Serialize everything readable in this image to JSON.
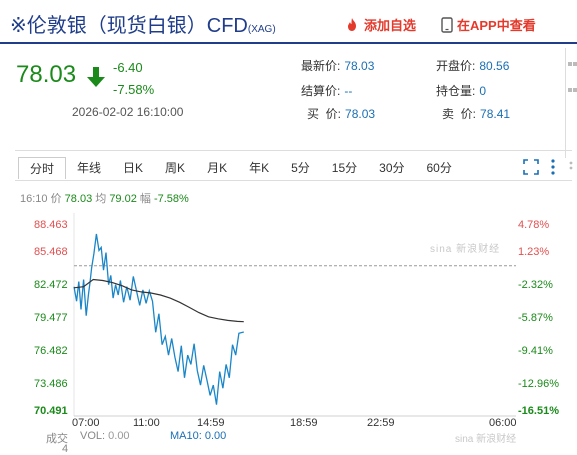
{
  "header": {
    "title": "※伦敦银（现货白银）CFD",
    "title_code": "(XAG)",
    "fav_label": "添加自选",
    "app_label": "在APP中查看"
  },
  "quote": {
    "price": "78.03",
    "change": "-6.40",
    "change_pct": "-7.58%",
    "datetime": "2026-02-02 16:10:00",
    "fields": [
      {
        "label": "最新价:",
        "value": "78.03"
      },
      {
        "label": "开盘价:",
        "value": "80.56"
      },
      {
        "label": "结算价:",
        "value": "--"
      },
      {
        "label": "持仓量:",
        "value": "0"
      },
      {
        "label": "买  价:",
        "value": "78.03"
      },
      {
        "label": "卖  价:",
        "value": "78.41"
      }
    ]
  },
  "chart_tabs": [
    "分时",
    "年线",
    "日K",
    "周K",
    "月K",
    "年K",
    "5分",
    "15分",
    "30分",
    "60分"
  ],
  "info_line": {
    "time": "16:10",
    "price_label": "价",
    "price": "78.03",
    "avg_label": "均",
    "avg": "79.02",
    "pct_label": "幅",
    "pct": "-7.58%"
  },
  "volume": {
    "label": "成交",
    "label2": "4",
    "vol_label": "VOL:",
    "vol": "0.00",
    "ma_label": "MA10:",
    "ma": "0.00"
  },
  "colors": {
    "up": "#e05050",
    "down": "#1a8a1a",
    "price_line": "#1a86c8",
    "avg_line": "#333333",
    "brand": "#1f3d8a",
    "accent_red": "#e43a2c"
  },
  "chart_data": {
    "type": "line",
    "title": "",
    "xlabel": "",
    "ylabel": "",
    "x_ticks": [
      "07:00",
      "11:00",
      "14:59",
      "18:59",
      "22:59",
      "06:00"
    ],
    "y_ticks_left": [
      "88.463",
      "85.468",
      "82.472",
      "79.477",
      "76.482",
      "73.486",
      "70.491"
    ],
    "y_ticks_right": [
      "4.78%",
      "1.23%",
      "-2.32%",
      "-5.87%",
      "-9.41%",
      "-12.96%",
      "-16.51%"
    ],
    "ylim": [
      70.491,
      88.463
    ],
    "prev_close": 84.43,
    "x_range_minutes": [
      0,
      1380
    ],
    "series": [
      {
        "name": "价",
        "x": [
          0,
          8,
          15,
          22,
          30,
          38,
          45,
          50,
          55,
          62,
          70,
          78,
          85,
          92,
          100,
          108,
          115,
          122,
          130,
          138,
          145,
          155,
          165,
          175,
          185,
          195,
          205,
          215,
          225,
          235,
          245,
          255,
          265,
          275,
          285,
          295,
          305,
          315,
          325,
          335,
          345,
          355,
          365,
          375,
          385,
          395,
          405,
          415,
          425,
          435,
          445,
          455,
          465,
          475,
          485,
          495,
          505,
          515,
          530
        ],
        "values": [
          82.4,
          81.0,
          82.9,
          80.2,
          83.1,
          79.6,
          81.6,
          82.8,
          84.2,
          85.6,
          87.5,
          85.9,
          86.2,
          84.0,
          85.7,
          82.6,
          83.5,
          81.3,
          82.6,
          81.6,
          83.0,
          80.9,
          82.4,
          81.1,
          83.4,
          82.0,
          80.6,
          82.1,
          80.8,
          82.0,
          81.0,
          78.0,
          79.8,
          76.8,
          77.6,
          75.8,
          77.4,
          75.6,
          74.2,
          76.7,
          73.6,
          75.8,
          74.9,
          76.9,
          74.3,
          72.9,
          74.8,
          73.4,
          71.9,
          72.9,
          71.0,
          74.2,
          72.6,
          74.9,
          73.6,
          76.8,
          75.8,
          77.9,
          78.03
        ]
      },
      {
        "name": "均",
        "x": [
          0,
          30,
          60,
          90,
          120,
          150,
          180,
          210,
          240,
          270,
          300,
          330,
          360,
          390,
          420,
          450,
          480,
          510,
          530
        ],
        "values": [
          82.3,
          82.4,
          83.1,
          83.0,
          82.8,
          82.5,
          82.1,
          81.9,
          81.8,
          81.6,
          81.3,
          80.9,
          80.4,
          79.9,
          79.5,
          79.3,
          79.15,
          79.05,
          79.02
        ]
      }
    ]
  }
}
